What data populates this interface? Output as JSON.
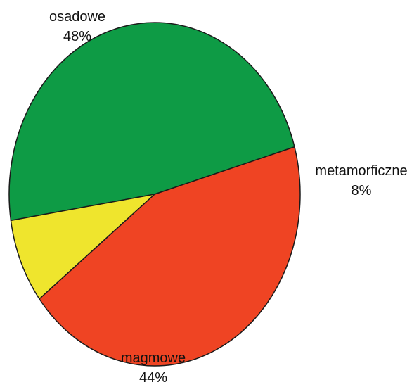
{
  "chart_data": {
    "type": "pie",
    "title": "",
    "slices": [
      {
        "label": "osadowe",
        "value": 48,
        "value_label": "48%",
        "color": "#0e9b45"
      },
      {
        "label": "metamorficzne",
        "value": 8,
        "value_label": "8%",
        "color": "#efe52d"
      },
      {
        "label": "magmowe",
        "value": 44,
        "value_label": "44%",
        "color": "#ef4423"
      }
    ],
    "legend": "none",
    "labels_outside": true
  }
}
